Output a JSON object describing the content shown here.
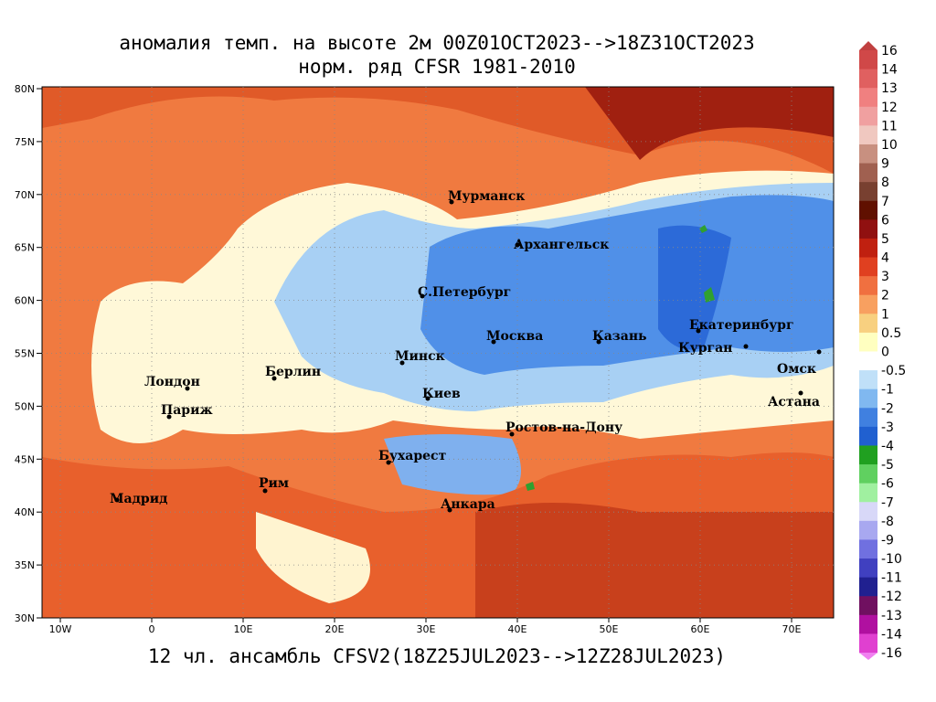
{
  "header": {
    "title_line1": "аномалия темп. на высоте 2м 00Z01OCT2023-->18Z31OCT2023",
    "title_line2": "норм. ряд CFSR 1981-2010"
  },
  "footer": "12 чл. ансамбль CFSV2(18Z25JUL2023-->12Z28JUL2023)",
  "lat_labels": [
    "80N",
    "75N",
    "70N",
    "65N",
    "60N",
    "55N",
    "50N",
    "45N",
    "40N",
    "35N",
    "30N"
  ],
  "lon_labels": [
    "10W",
    "0",
    "10E",
    "20E",
    "30E",
    "40E",
    "50E",
    "60E",
    "70E"
  ],
  "cities": [
    "Мурманск",
    "Архангельск",
    "С.Петербург",
    "Москва",
    "Казань",
    "Екатеринбург",
    "Курган",
    "Омск",
    "Астана",
    "Лондон",
    "Париж",
    "Берлин",
    "Минск",
    "Киев",
    "Ростов-на-Дону",
    "Бухарест",
    "Рим",
    "Мадрид",
    "Анкара"
  ],
  "colorbar_labels": [
    "16",
    "14",
    "13",
    "12",
    "11",
    "10",
    "9",
    "8",
    "7",
    "6",
    "5",
    "4",
    "3",
    "2",
    "1",
    "0.5",
    "0",
    "-0.5",
    "-1",
    "-2",
    "-3",
    "-4",
    "-5",
    "-6",
    "-7",
    "-8",
    "-9",
    "-10",
    "-11",
    "-12",
    "-13",
    "-14",
    "-16"
  ]
}
